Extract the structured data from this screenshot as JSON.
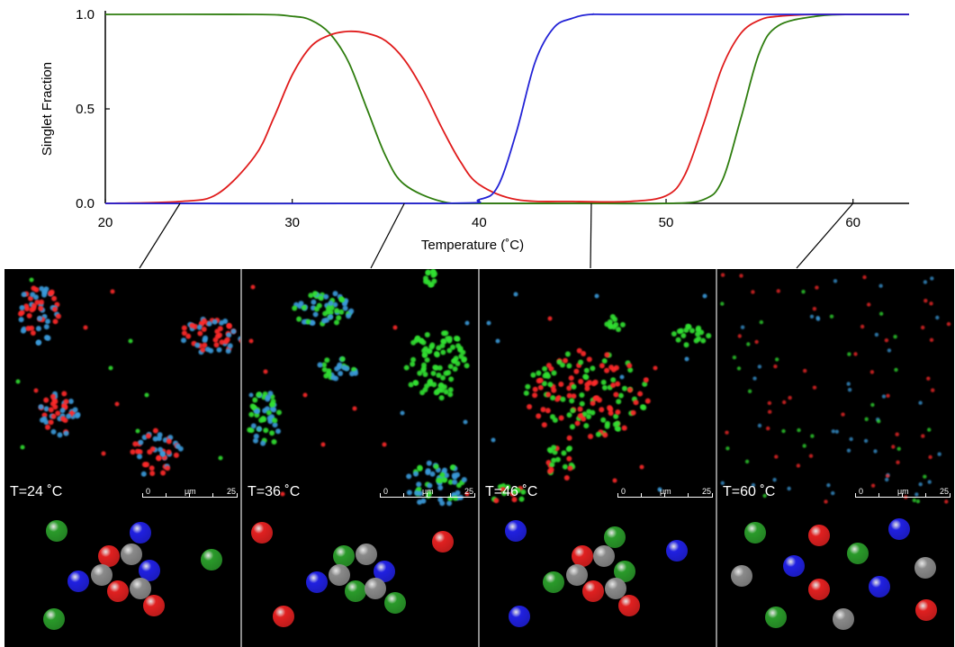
{
  "chart_data": {
    "type": "line",
    "xlabel": "Temperature (˚C)",
    "ylabel": "Singlet Fraction",
    "xlim": [
      20,
      63
    ],
    "ylim": [
      0,
      1
    ],
    "x_ticks": [
      20,
      30,
      40,
      50,
      60
    ],
    "y_ticks": [
      0.0,
      0.5,
      1.0
    ],
    "x_tick_labels": [
      "20",
      "30",
      "40",
      "50",
      "60"
    ],
    "y_tick_labels": [
      "0.0",
      "0.5",
      "1.0"
    ],
    "grid": false,
    "series": [
      {
        "color": "#2e7d0e",
        "x": [
          20,
          28,
          30,
          31,
          32,
          33,
          34,
          35,
          36,
          38,
          40,
          45,
          50,
          52,
          53,
          54,
          55,
          56,
          58,
          60,
          63
        ],
        "y": [
          1.0,
          1.0,
          0.99,
          0.97,
          0.9,
          0.75,
          0.5,
          0.25,
          0.1,
          0.01,
          0.0,
          0.0,
          0.0,
          0.02,
          0.12,
          0.45,
          0.8,
          0.94,
          0.99,
          1.0,
          1.0
        ]
      },
      {
        "color": "#e01b1b",
        "x": [
          20,
          24,
          26,
          28,
          29,
          30,
          31,
          32,
          33,
          34,
          35,
          36,
          37,
          38,
          39,
          40,
          42,
          45,
          48,
          50,
          51,
          52,
          53,
          54,
          55,
          56,
          58,
          60,
          63
        ],
        "y": [
          0.0,
          0.01,
          0.05,
          0.25,
          0.45,
          0.68,
          0.83,
          0.89,
          0.91,
          0.9,
          0.86,
          0.76,
          0.6,
          0.4,
          0.22,
          0.1,
          0.02,
          0.01,
          0.01,
          0.04,
          0.15,
          0.42,
          0.72,
          0.9,
          0.97,
          0.99,
          1.0,
          1.0,
          1.0
        ]
      },
      {
        "color": "#2222d6",
        "x": [
          20,
          38,
          40,
          41,
          42,
          43,
          44,
          45,
          46,
          48,
          63
        ],
        "y": [
          0.0,
          0.0,
          0.02,
          0.09,
          0.38,
          0.75,
          0.93,
          0.98,
          1.0,
          1.0,
          1.0
        ]
      }
    ]
  },
  "panels": [
    {
      "temp_label": "T=24 ˚C",
      "temperature": 24,
      "scale": {
        "start": "0",
        "unit": "μm",
        "end": "25"
      }
    },
    {
      "temp_label": "T=36 ˚C",
      "temperature": 36,
      "scale": {
        "start": "0",
        "unit": "μm",
        "end": "25"
      }
    },
    {
      "temp_label": "T=46 ˚C",
      "temperature": 46,
      "scale": {
        "start": "0",
        "unit": "μm",
        "end": "25"
      }
    },
    {
      "temp_label": "T=60 ˚C",
      "temperature": 60,
      "scale": {
        "start": "0",
        "unit": "μm",
        "end": "25"
      }
    }
  ],
  "colors": {
    "green": "#2e7d0e",
    "red": "#e01b1b",
    "blue": "#2222d6",
    "gray": "#808080",
    "bead_red": "#e02020",
    "bead_green": "#2a9a2a",
    "bead_blue": "#2020e0",
    "bead_gray": "#8a8a8a",
    "micro_blue": "#3a9ad9"
  }
}
